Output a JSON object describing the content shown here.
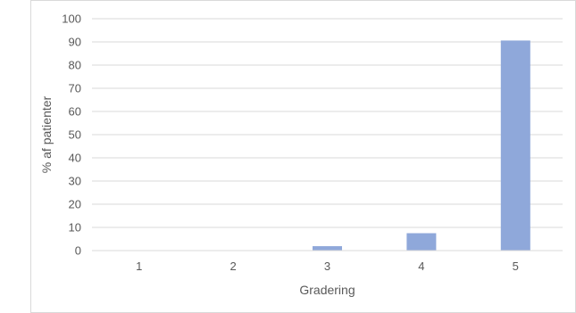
{
  "chart_data": {
    "type": "bar",
    "categories": [
      "1",
      "2",
      "3",
      "4",
      "5"
    ],
    "values": [
      0,
      0,
      1.9,
      7.5,
      90.6
    ],
    "title": "",
    "xlabel": "Gradering",
    "ylabel": "% af patienter",
    "ylim": [
      0,
      100
    ],
    "yticks": [
      "0",
      "10",
      "20",
      "30",
      "40",
      "50",
      "60",
      "70",
      "80",
      "90",
      "100"
    ],
    "grid": true,
    "legend": "none",
    "bar_color": "#8FA8DA",
    "grid_color": "#D9D9D9",
    "text_color": "#595959"
  }
}
